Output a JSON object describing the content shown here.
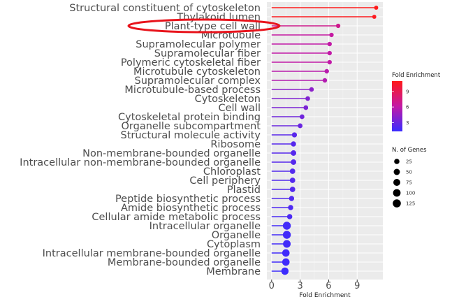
{
  "chart_data": {
    "type": "lollipop",
    "xlabel": "Fold Enrichment",
    "xlim": [
      -0.5,
      11.7
    ],
    "xticks": [
      0,
      3,
      6,
      9
    ],
    "grid": true,
    "legend_placement": "right",
    "color_scale": {
      "title": "Fold Enrichment",
      "low_color": "#3a2cff",
      "mid_color": "#c31aa6",
      "high_color": "#ff1a1a",
      "ticks": [
        3,
        6,
        9
      ],
      "range": [
        1.3,
        11
      ]
    },
    "size_legend": {
      "title": "N. of Genes",
      "values": [
        25,
        50,
        75,
        100,
        125
      ]
    },
    "highlight": "Plant-type cell wall",
    "categories": [
      {
        "term": "Structural constituent of cytoskeleton",
        "fold_enrichment": 11.0,
        "genes": 5
      },
      {
        "term": "Thylakoid lumen",
        "fold_enrichment": 10.8,
        "genes": 5
      },
      {
        "term": "Plant-type cell wall",
        "fold_enrichment": 7.0,
        "genes": 8
      },
      {
        "term": "Microtubule",
        "fold_enrichment": 6.3,
        "genes": 8
      },
      {
        "term": "Supramolecular polymer",
        "fold_enrichment": 6.1,
        "genes": 9
      },
      {
        "term": "Supramolecular fiber",
        "fold_enrichment": 6.1,
        "genes": 9
      },
      {
        "term": "Polymeric cytoskeletal fiber",
        "fold_enrichment": 6.1,
        "genes": 9
      },
      {
        "term": "Microtubule cytoskeleton",
        "fold_enrichment": 5.8,
        "genes": 10
      },
      {
        "term": "Supramolecular complex",
        "fold_enrichment": 5.6,
        "genes": 10
      },
      {
        "term": "Microtubule-based process",
        "fold_enrichment": 4.2,
        "genes": 11
      },
      {
        "term": "Cytoskeleton",
        "fold_enrichment": 3.8,
        "genes": 12
      },
      {
        "term": "Cell wall",
        "fold_enrichment": 3.6,
        "genes": 13
      },
      {
        "term": "Cytoskeletal protein binding",
        "fold_enrichment": 3.2,
        "genes": 14
      },
      {
        "term": "Organelle subcompartment",
        "fold_enrichment": 3.0,
        "genes": 15
      },
      {
        "term": "Structural molecule activity",
        "fold_enrichment": 2.4,
        "genes": 20
      },
      {
        "term": "Ribosome",
        "fold_enrichment": 2.3,
        "genes": 22
      },
      {
        "term": "Non-membrane-bounded organelle",
        "fold_enrichment": 2.3,
        "genes": 30
      },
      {
        "term": "Intracellular non-membrane-bounded organelle",
        "fold_enrichment": 2.3,
        "genes": 30
      },
      {
        "term": "Chloroplast",
        "fold_enrichment": 2.2,
        "genes": 28
      },
      {
        "term": "Cell periphery",
        "fold_enrichment": 2.2,
        "genes": 28
      },
      {
        "term": "Plastid",
        "fold_enrichment": 2.2,
        "genes": 28
      },
      {
        "term": "Peptide biosynthetic process",
        "fold_enrichment": 2.1,
        "genes": 22
      },
      {
        "term": "Amide biosynthetic process",
        "fold_enrichment": 2.0,
        "genes": 22
      },
      {
        "term": "Cellular amide metabolic process",
        "fold_enrichment": 1.9,
        "genes": 24
      },
      {
        "term": "Intracellular organelle",
        "fold_enrichment": 1.6,
        "genes": 120
      },
      {
        "term": "Organelle",
        "fold_enrichment": 1.6,
        "genes": 120
      },
      {
        "term": "Cytoplasm",
        "fold_enrichment": 1.6,
        "genes": 105
      },
      {
        "term": "Intracellular membrane-bounded organelle",
        "fold_enrichment": 1.5,
        "genes": 95
      },
      {
        "term": "Membrane-bounded organelle",
        "fold_enrichment": 1.5,
        "genes": 95
      },
      {
        "term": "Membrane",
        "fold_enrichment": 1.4,
        "genes": 90
      }
    ]
  }
}
